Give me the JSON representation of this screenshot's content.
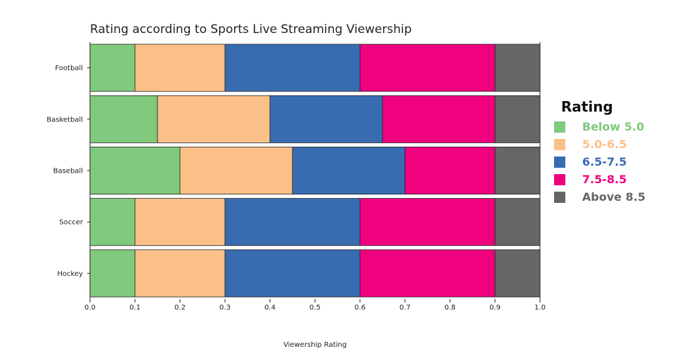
{
  "chart_data": {
    "type": "bar",
    "orientation": "horizontal",
    "stacked": true,
    "title": "Rating according to Sports Live Streaming Viewership",
    "xlabel": "Viewership Rating",
    "ylabel": "",
    "xlim": [
      0,
      1.0
    ],
    "xticks": [
      "0.0",
      "0.1",
      "0.2",
      "0.3",
      "0.4",
      "0.5",
      "0.6",
      "0.7",
      "0.8",
      "0.9",
      "1.0"
    ],
    "categories": [
      "Football",
      "Basketball",
      "Baseball",
      "Soccer",
      "Hockey"
    ],
    "legend": {
      "title": "Rating",
      "placement": "right"
    },
    "grid": false,
    "series": [
      {
        "name": "Below 5.0",
        "color": "#81c97d",
        "values": [
          0.1,
          0.15,
          0.2,
          0.1,
          0.1
        ]
      },
      {
        "name": "5.0-6.5",
        "color": "#fbc088",
        "values": [
          0.2,
          0.25,
          0.25,
          0.2,
          0.2
        ]
      },
      {
        "name": "6.5-7.5",
        "color": "#386cb0",
        "values": [
          0.3,
          0.25,
          0.25,
          0.3,
          0.3
        ]
      },
      {
        "name": "7.5-8.5",
        "color": "#f0027f",
        "values": [
          0.3,
          0.25,
          0.2,
          0.3,
          0.3
        ]
      },
      {
        "name": "Above 8.5",
        "color": "#666666",
        "values": [
          0.1,
          0.1,
          0.1,
          0.1,
          0.1
        ]
      }
    ]
  }
}
